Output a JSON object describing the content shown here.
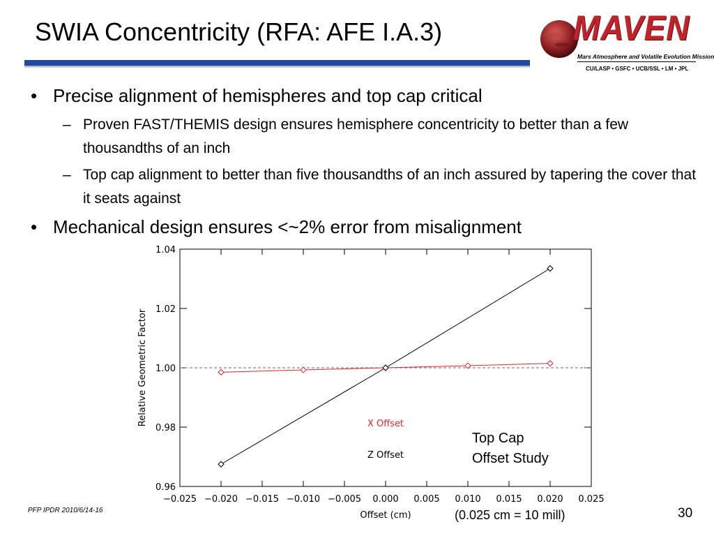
{
  "slide": {
    "title": "SWIA Concentricity (RFA: AFE I.A.3)",
    "footer": "PFP IPDR 2010/6/14-16",
    "page_number": "30",
    "accent_color": "#1f4aa0"
  },
  "logo": {
    "wordmark": "MAVEN",
    "subtitle": "Mars Atmosphere and Volatile Evolution Mission",
    "partners": "CU/LASP • GSFC • UCB/SSL • LM • JPL",
    "brand_color": "#c0242a"
  },
  "bullets": [
    {
      "text": "Precise alignment of hemispheres and top cap critical",
      "sub": [
        "Proven FAST/THEMIS design ensures hemisphere concentricity to better than a few thousandths of an inch",
        "Top cap alignment to better than five thousandths of an inch assured by tapering the cover that it seats against"
      ]
    },
    {
      "text": "Mechanical design ensures <~2% error from misalignment",
      "sub": []
    }
  ],
  "bullet_glyph": "•",
  "sub_glyph": "–",
  "notes": {
    "study_label_line1": "Top Cap",
    "study_label_line2": "Offset Study",
    "conversion": "(0.025 cm = 10 mill)"
  },
  "chart_data": {
    "type": "line",
    "title": "",
    "xlabel": "Offset (cm)",
    "ylabel": "Relative Geometric Factor",
    "xlim": [
      -0.025,
      0.025
    ],
    "ylim": [
      0.96,
      1.04
    ],
    "x_ticks": [
      "−0.025",
      "−0.020",
      "−0.015",
      "−0.010",
      "−0.005",
      "0.000",
      "0.005",
      "0.010",
      "0.015",
      "0.020",
      "0.025"
    ],
    "y_ticks": [
      "0.96",
      "0.98",
      "1.00",
      "1.02",
      "1.04"
    ],
    "x_tick_values": [
      -0.025,
      -0.02,
      -0.015,
      -0.01,
      -0.005,
      0.0,
      0.005,
      0.01,
      0.015,
      0.02,
      0.025
    ],
    "y_tick_values": [
      0.96,
      0.98,
      1.0,
      1.02,
      1.04
    ],
    "reference_line": {
      "y": 1.0,
      "style": "dashed",
      "color": "#666666"
    },
    "marker": "diamond",
    "series": [
      {
        "name": "X Offset",
        "color": "#e0262b",
        "x": [
          -0.02,
          -0.01,
          0.0,
          0.01,
          0.02
        ],
        "y": [
          0.9985,
          0.9993,
          1.0,
          1.0007,
          1.0015
        ]
      },
      {
        "name": "Z Offset",
        "color": "#000000",
        "x": [
          -0.02,
          0.0,
          0.02
        ],
        "y": [
          0.9675,
          1.0,
          1.0335
        ]
      }
    ],
    "legend_placement": "bottom-center"
  }
}
